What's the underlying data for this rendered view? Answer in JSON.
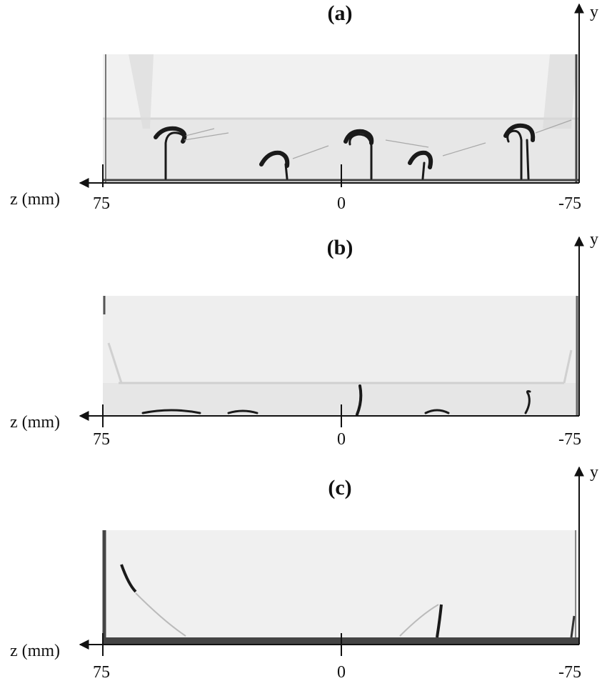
{
  "figure": {
    "panels": [
      {
        "id": "a",
        "title": "(a)",
        "x_axis_label": "z (mm)",
        "y_axis_label": "y",
        "ticks": [
          {
            "value": 75,
            "label": "75"
          },
          {
            "value": 0,
            "label": "0"
          },
          {
            "value": -75,
            "label": "-75"
          }
        ]
      },
      {
        "id": "b",
        "title": "(b)",
        "x_axis_label": "z (mm)",
        "y_axis_label": "y",
        "ticks": [
          {
            "value": 75,
            "label": "75"
          },
          {
            "value": 0,
            "label": "0"
          },
          {
            "value": -75,
            "label": "-75"
          }
        ]
      },
      {
        "id": "c",
        "title": "(c)",
        "x_axis_label": "z (mm)",
        "y_axis_label": "y",
        "ticks": [
          {
            "value": 75,
            "label": "75"
          },
          {
            "value": 0,
            "label": "0"
          },
          {
            "value": -75,
            "label": "-75"
          }
        ]
      }
    ]
  },
  "colors": {
    "ink": "#111111",
    "background": "#ffffff",
    "image_field": "#ececec"
  }
}
